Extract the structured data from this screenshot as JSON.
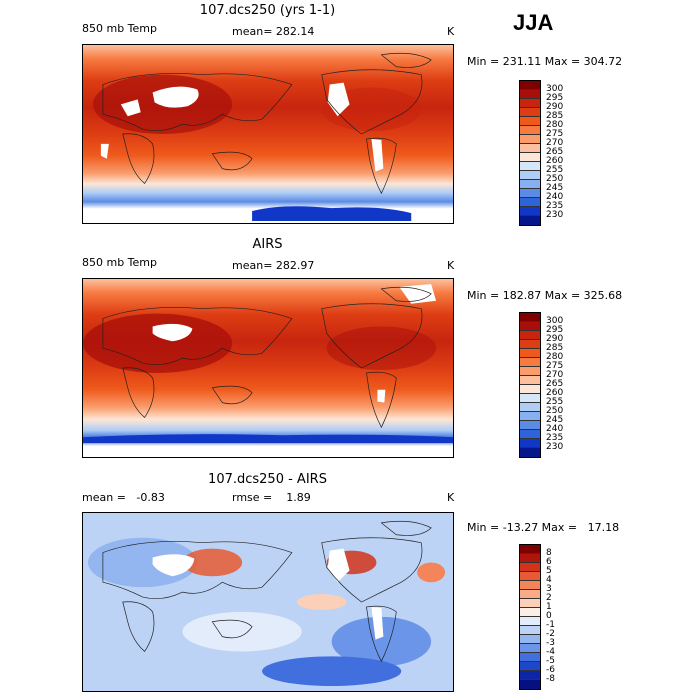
{
  "season": "JJA",
  "panels": [
    {
      "title": "107.dcs250 (yrs 1-1)",
      "left_label": "850 mb Temp",
      "center_label": "mean= 282.14",
      "units": "K",
      "minmax": "Min = 231.11 Max = 304.72",
      "colorbar_labels": [
        "300",
        "295",
        "290",
        "285",
        "280",
        "275",
        "270",
        "265",
        "260",
        "255",
        "250",
        "245",
        "240",
        "235",
        "230"
      ],
      "colorbar_colors": [
        "#7f0000",
        "#a80f0a",
        "#c8250f",
        "#dd3d13",
        "#ef5a1c",
        "#f77a40",
        "#fa9c6c",
        "#fcc09e",
        "#fde6d6",
        "#d5e6fa",
        "#afcdf5",
        "#86b0ef",
        "#5a8ce6",
        "#2e63da",
        "#1037c6",
        "#06178c"
      ]
    },
    {
      "title": "AIRS",
      "left_label": "850 mb Temp",
      "center_label": "mean= 282.97",
      "units": "K",
      "minmax": "Min = 182.87 Max = 325.68",
      "colorbar_labels": [
        "300",
        "295",
        "290",
        "285",
        "280",
        "275",
        "270",
        "265",
        "260",
        "255",
        "250",
        "245",
        "240",
        "235",
        "230"
      ],
      "colorbar_colors": [
        "#7f0000",
        "#a80f0a",
        "#c8250f",
        "#dd3d13",
        "#ef5a1c",
        "#f77a40",
        "#fa9c6c",
        "#fcc09e",
        "#fde6d6",
        "#d5e6fa",
        "#afcdf5",
        "#86b0ef",
        "#5a8ce6",
        "#2e63da",
        "#1037c6",
        "#06178c"
      ]
    },
    {
      "title": "107.dcs250 - AIRS",
      "left_label": "mean =   -0.83",
      "center_label": "rmse =    1.89",
      "units": "K",
      "minmax": "Min = -13.27 Max =   17.18",
      "colorbar_labels": [
        "8",
        "6",
        "5",
        "4",
        "3",
        "2",
        "1",
        "0",
        "-1",
        "-2",
        "-3",
        "-4",
        "-5",
        "-6",
        "-8"
      ],
      "colorbar_colors": [
        "#7f0000",
        "#b0150d",
        "#d2321a",
        "#e85a33",
        "#f4845a",
        "#f9aa86",
        "#fcd0b8",
        "#fbeee6",
        "#e2ecfb",
        "#bcd3f6",
        "#93b6f0",
        "#6a95e8",
        "#416fde",
        "#1f47cc",
        "#0c26a8",
        "#061080"
      ]
    }
  ]
}
